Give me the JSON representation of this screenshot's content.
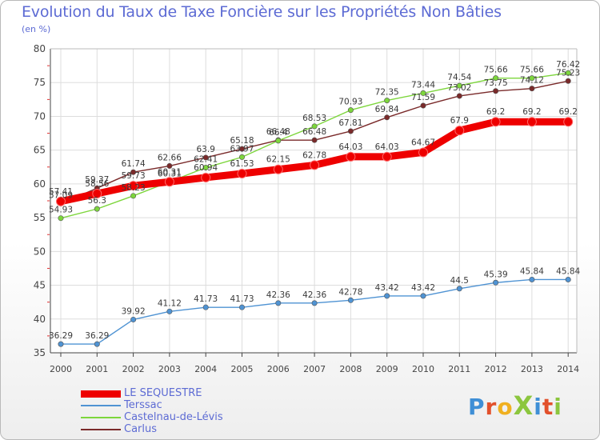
{
  "title": "Evolution du Taux de Taxe Foncière sur les Propriétés Non Bâties",
  "unit_label": "(en %)",
  "logo": {
    "text": "ProXiti",
    "letters": [
      "P",
      "r",
      "o",
      "X",
      "i",
      "t",
      "i"
    ]
  },
  "colors": {
    "title": "#5d6bd4",
    "axis": "#444444",
    "grid": "#dddddd",
    "tick_red": "#e03030",
    "logo": [
      "#3f8fd6",
      "#e2502b",
      "#f0b020",
      "#8cc63e",
      "#3f8fd6",
      "#e2502b",
      "#8cc63e"
    ]
  },
  "chart_data": {
    "type": "line",
    "title": "Evolution du Taux de Taxe Foncière sur les Propriétés Non Bâties",
    "ylabel": "(en %)",
    "xlabel": "",
    "ylim": [
      35,
      80
    ],
    "yticks": [
      35,
      40,
      45,
      50,
      55,
      60,
      65,
      70,
      75,
      80
    ],
    "x": [
      "2000",
      "2001",
      "2002",
      "2003",
      "2004",
      "2005",
      "2006",
      "2007",
      "2008",
      "2009",
      "2010",
      "2011",
      "2012",
      "2013",
      "2014"
    ],
    "grid": true,
    "legend_position": "bottom-left",
    "series": [
      {
        "name": "Carlus",
        "color": "#7a2a2a",
        "style": "thin",
        "values": [
          57.09,
          59.37,
          61.74,
          62.66,
          63.9,
          65.18,
          66.48,
          66.48,
          67.81,
          69.84,
          71.59,
          73.02,
          73.75,
          74.12,
          75.23
        ],
        "labels": [
          "57.09",
          "59.37",
          "61.74",
          "62.66",
          "63.9",
          "65.18",
          "66.48",
          "66.48",
          "67.81",
          "69.84",
          "71.59",
          "73.02",
          "73.75",
          "74.12",
          "75.23"
        ]
      },
      {
        "name": "Castelnau-de-Lévis",
        "color": "#7dd63c",
        "style": "thin",
        "values": [
          54.93,
          56.3,
          58.23,
          60.31,
          62.41,
          63.97,
          66.4,
          68.53,
          70.93,
          72.35,
          73.44,
          74.54,
          75.66,
          75.66,
          76.42
        ],
        "labels": [
          "54.93",
          "56.3",
          "58.23",
          "60.31",
          "62.41",
          "63.97",
          "66.4",
          "68.53",
          "70.93",
          "72.35",
          "73.44",
          "74.54",
          "75.66",
          "75.66",
          "76.42"
        ]
      },
      {
        "name": "Terssac",
        "color": "#4f93d3",
        "style": "thin",
        "values": [
          36.29,
          36.29,
          39.92,
          41.12,
          41.73,
          41.73,
          42.36,
          42.36,
          42.78,
          43.42,
          43.42,
          44.5,
          45.39,
          45.84,
          45.84
        ],
        "labels": [
          "36.29",
          "36.29",
          "39.92",
          "41.12",
          "41.73",
          "41.73",
          "42.36",
          "42.36",
          "42.78",
          "43.42",
          "43.42",
          "44.5",
          "45.39",
          "45.84",
          "45.84"
        ]
      },
      {
        "name": "LE SEQUESTRE",
        "color": "#ee0000",
        "style": "thick",
        "values": [
          57.41,
          58.56,
          59.73,
          60.31,
          60.94,
          61.53,
          62.15,
          62.78,
          64.03,
          64.03,
          64.67,
          67.9,
          69.2,
          69.2,
          69.2
        ],
        "labels": [
          "57.41",
          "58.56",
          "59.73",
          "60.31",
          "60.94",
          "61.53",
          "62.15",
          "62.78",
          "64.03",
          "64.03",
          "64.67",
          "67.9",
          "69.2",
          "69.2",
          "69.2"
        ]
      }
    ],
    "legend_order": [
      "LE SEQUESTRE",
      "Terssac",
      "Castelnau-de-Lévis",
      "Carlus"
    ]
  }
}
